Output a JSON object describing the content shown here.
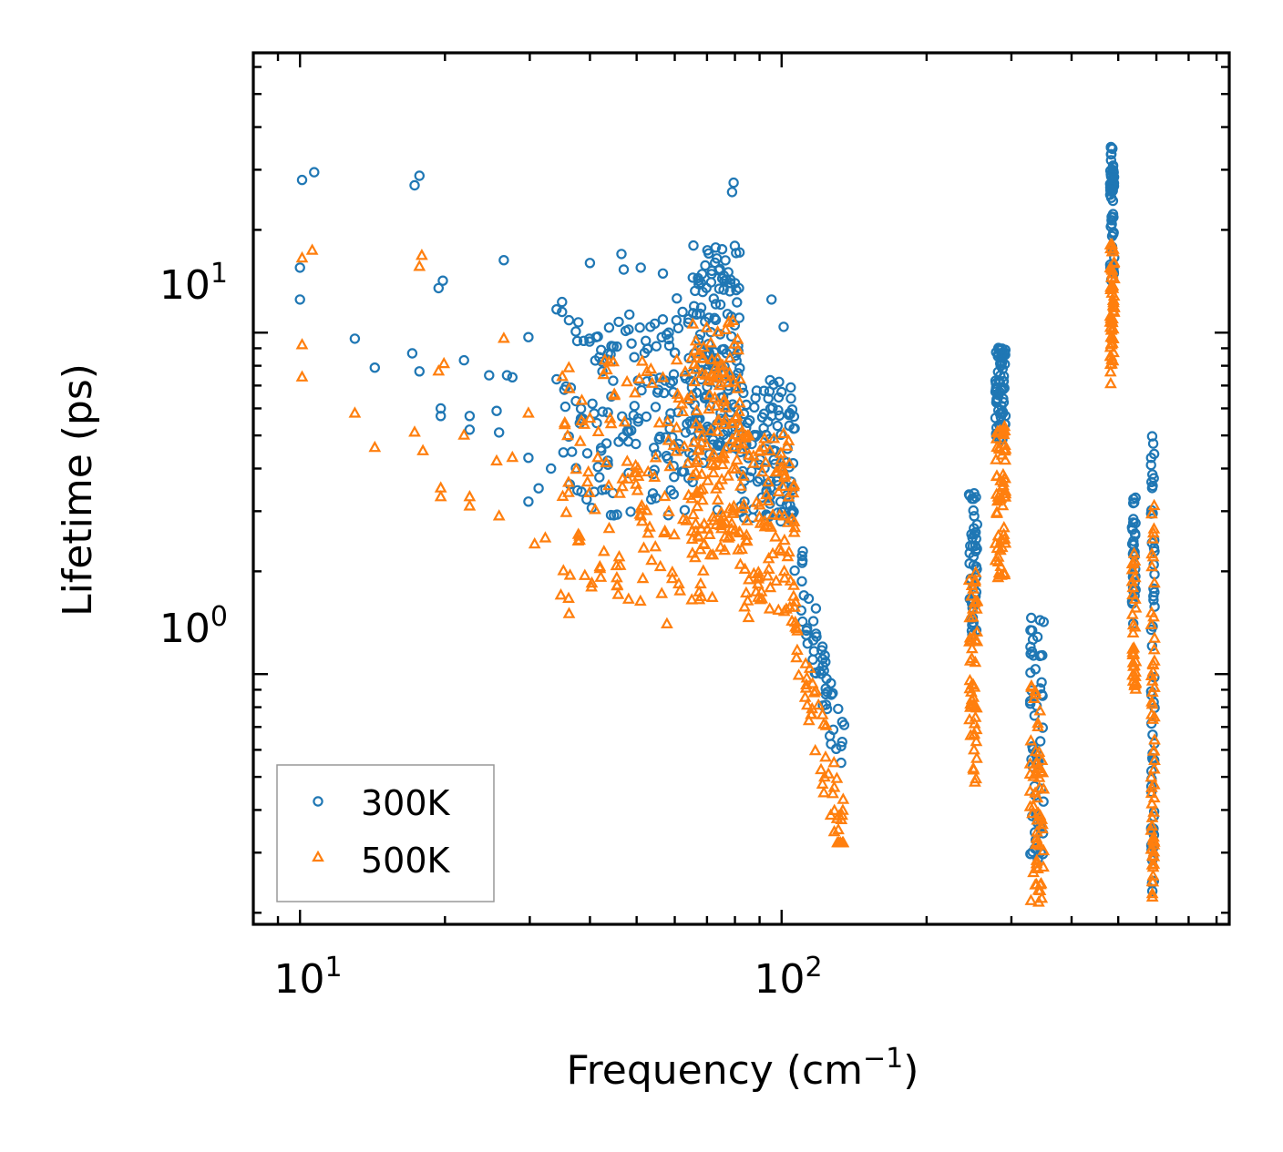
{
  "chart_data": {
    "type": "scatter",
    "xscale": "log",
    "yscale": "log",
    "xlim": [
      8,
      850
    ],
    "ylim": [
      0.185,
      66
    ],
    "xlabel": "Frequency (cm",
    "xlabel_sup": "−1",
    "xlabel_close": ")",
    "ylabel": "Lifetime (ps)",
    "x_tick_labels": [
      {
        "base": "10",
        "exp": "1",
        "value": 10
      },
      {
        "base": "10",
        "exp": "2",
        "value": 100
      }
    ],
    "y_tick_labels": [
      {
        "base": "10",
        "exp": "0",
        "value": 1
      },
      {
        "base": "10",
        "exp": "1",
        "value": 10
      }
    ],
    "legend": {
      "placement": "lower-left",
      "entries": [
        "300K",
        "500K"
      ]
    },
    "colors": {
      "300K": "#1f77b4",
      "500K": "#ff7f0e"
    },
    "series": [
      {
        "name": "300K",
        "marker": "circle",
        "color": "#1f77b4",
        "points": [
          [
            10.1,
            28
          ],
          [
            10.7,
            29.5
          ],
          [
            10.0,
            15.5
          ],
          [
            10.0,
            12.5
          ],
          [
            13.0,
            9.6
          ],
          [
            14.3,
            7.9
          ],
          [
            17.3,
            27.0
          ],
          [
            17.7,
            28.8
          ],
          [
            17.1,
            8.7
          ],
          [
            17.7,
            7.7
          ],
          [
            19.4,
            13.5
          ],
          [
            19.8,
            14.2
          ],
          [
            19.6,
            6.0
          ],
          [
            19.6,
            5.7
          ],
          [
            21.9,
            8.3
          ],
          [
            22.5,
            5.7
          ],
          [
            22.5,
            5.2
          ],
          [
            24.7,
            7.5
          ],
          [
            26.5,
            16.3
          ],
          [
            25.6,
            5.9
          ],
          [
            25.9,
            5.1
          ],
          [
            26.9,
            7.5
          ],
          [
            27.6,
            7.4
          ],
          [
            29.8,
            9.7
          ],
          [
            29.8,
            4.3
          ],
          [
            29.8,
            3.2
          ],
          [
            31.3,
            3.5
          ],
          [
            33.2,
            4.0
          ],
          [
            34.1,
            11.7
          ],
          [
            34.1,
            7.3
          ],
          [
            35.0,
            12.3
          ],
          [
            35.0,
            11.5
          ],
          [
            36.5,
            6.9
          ],
          [
            37.4,
            6.3
          ],
          [
            38.3,
            5.6
          ],
          [
            40.0,
            16.0
          ],
          [
            41.2,
            9.7
          ],
          [
            42.2,
            8.9
          ],
          [
            44.3,
            6.5
          ],
          [
            45.5,
            9.1
          ],
          [
            46.5,
            17.0
          ],
          [
            47.0,
            15.3
          ],
          [
            48.3,
            11.3
          ],
          [
            49.5,
            6.1
          ],
          [
            51.0,
            15.5
          ],
          [
            52.5,
            7.2
          ],
          [
            53.4,
            10.4
          ],
          [
            55.5,
            6.8
          ],
          [
            56.7,
            14.9
          ],
          [
            58.8,
            5.8
          ],
          [
            60.6,
            12.6
          ],
          [
            62.3,
            11.5
          ],
          [
            64.0,
            10.7
          ],
          [
            65.6,
            18.0
          ],
          [
            68.0,
            14.0
          ],
          [
            70.2,
            5.2
          ],
          [
            73.0,
            10.9
          ],
          [
            76.4,
            7.6
          ],
          [
            78.9,
            25.8
          ],
          [
            79.5,
            27.5
          ],
          [
            95.3,
            12.5
          ],
          [
            101.0,
            10.4
          ]
        ],
        "clusters": [
          {
            "f": [
              35,
              75
            ],
            "t": [
              2.9,
              11
            ],
            "n": 160
          },
          {
            "f": [
              65,
              82
            ],
            "t": [
              4.5,
              18
            ],
            "n": 140
          },
          {
            "f": [
              82,
              107
            ],
            "t": [
              2.8,
              7.5
            ],
            "n": 110
          },
          {
            "f": [
              105,
              135
            ],
            "t": [
              0.55,
              3.2
            ],
            "n": 55,
            "trend": true
          },
          {
            "f": [
              245,
              255
            ],
            "t": [
              1.3,
              3.6
            ],
            "n": 45
          },
          {
            "f": [
              278,
              292
            ],
            "t": [
              4.8,
              9.2
            ],
            "n": 70
          },
          {
            "f": [
              328,
              350
            ],
            "t": [
              0.28,
              1.5
            ],
            "n": 60
          },
          {
            "f": [
              481,
              491
            ],
            "t": [
              14,
              35
            ],
            "n": 55
          },
          {
            "f": [
              534,
              544
            ],
            "t": [
              1.4,
              3.3
            ],
            "n": 35
          },
          {
            "f": [
              585,
              595
            ],
            "t": [
              0.2,
              5.3
            ],
            "n": 60
          }
        ]
      },
      {
        "name": "500K",
        "marker": "triangle",
        "color": "#ff7f0e",
        "points": [
          [
            10.1,
            16.5
          ],
          [
            10.6,
            17.4
          ],
          [
            10.1,
            9.2
          ],
          [
            10.1,
            7.4
          ],
          [
            13.0,
            5.8
          ],
          [
            14.3,
            4.6
          ],
          [
            17.3,
            5.1
          ],
          [
            17.7,
            15.6
          ],
          [
            17.9,
            16.8
          ],
          [
            18.0,
            4.5
          ],
          [
            19.4,
            7.7
          ],
          [
            19.9,
            8.1
          ],
          [
            19.6,
            3.5
          ],
          [
            19.6,
            3.3
          ],
          [
            21.9,
            5.0
          ],
          [
            22.5,
            3.3
          ],
          [
            22.5,
            3.1
          ],
          [
            25.6,
            4.2
          ],
          [
            25.9,
            2.9
          ],
          [
            26.5,
            9.6
          ],
          [
            27.6,
            4.3
          ],
          [
            29.8,
            5.8
          ],
          [
            30.7,
            2.4
          ],
          [
            32.3,
            2.5
          ],
          [
            34.8,
            1.7
          ],
          [
            36.2,
            1.5
          ],
          [
            40.0,
            5.6
          ],
          [
            46.0,
            2.2
          ],
          [
            51.0,
            2.9
          ],
          [
            57.8,
            1.4
          ],
          [
            59.3,
            1.9
          ],
          [
            61.5,
            1.75
          ]
        ],
        "clusters": [
          {
            "f": [
              35,
              75
            ],
            "t": [
              1.6,
              8.6
            ],
            "n": 150
          },
          {
            "f": [
              65,
              82
            ],
            "t": [
              2.3,
              11
            ],
            "n": 130
          },
          {
            "f": [
              82,
              107
            ],
            "t": [
              1.4,
              5.2
            ],
            "n": 110
          },
          {
            "f": [
              105,
              135
            ],
            "t": [
              0.32,
              1.9
            ],
            "n": 50,
            "trend": true
          },
          {
            "f": [
              245,
              255
            ],
            "t": [
              0.47,
              2.0
            ],
            "n": 55
          },
          {
            "f": [
              278,
              292
            ],
            "t": [
              1.9,
              5.3
            ],
            "n": 60
          },
          {
            "f": [
              328,
              350
            ],
            "t": [
              0.21,
              0.95
            ],
            "n": 60
          },
          {
            "f": [
              481,
              491
            ],
            "t": [
              6.9,
              18.5
            ],
            "n": 55
          },
          {
            "f": [
              534,
              544
            ],
            "t": [
              0.9,
              2.3
            ],
            "n": 35
          },
          {
            "f": [
              585,
              595
            ],
            "t": [
              0.19,
              3.4
            ],
            "n": 60
          }
        ]
      }
    ]
  }
}
